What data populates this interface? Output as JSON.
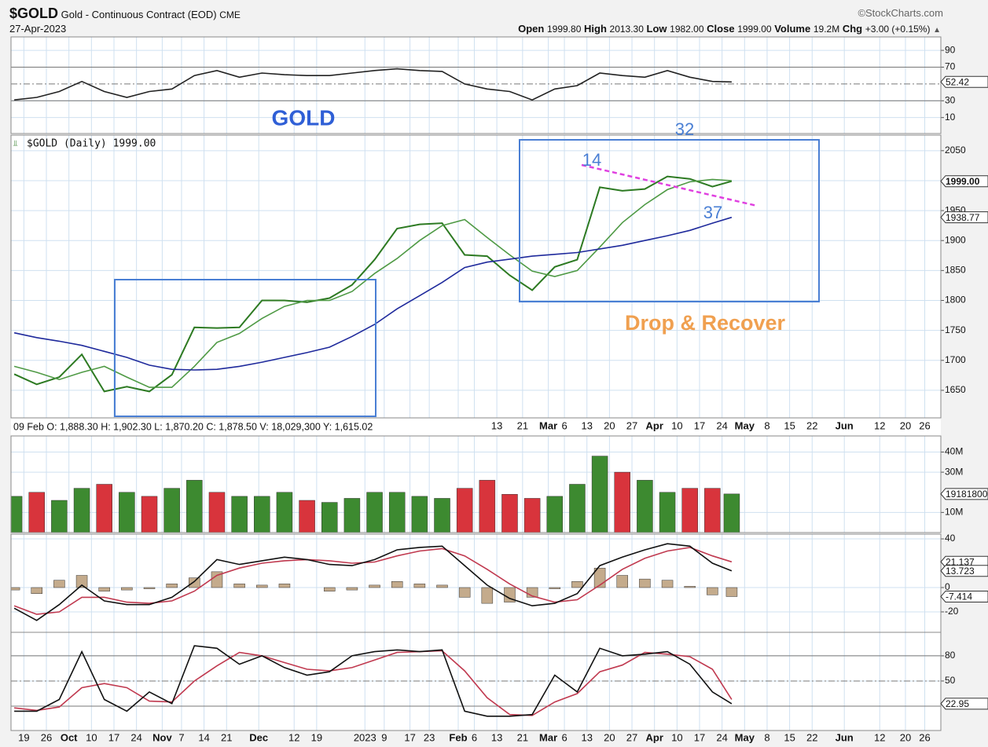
{
  "header": {
    "symbol": "$GOLD",
    "name": "Gold - Continuous Contract (EOD)",
    "exchange": "CME",
    "date": "27-Apr-2023",
    "source": "©StockCharts.com",
    "stats": [
      {
        "label": "Open",
        "value": "1999.80"
      },
      {
        "label": "High",
        "value": "2013.30"
      },
      {
        "label": "Low",
        "value": "1982.00"
      },
      {
        "label": "Close",
        "value": "1999.00"
      },
      {
        "label": "Volume",
        "value": "19.2M"
      },
      {
        "label": "Chg",
        "value": "+3.00 (+0.15%)"
      }
    ]
  },
  "chart_data": {
    "type": "stock",
    "info": "09 Feb O: 1,888.30 H: 1,902.30 L: 1,870.20 C: 1,878.50 V: 18,029,300 Y: 1,615.02",
    "annotations": [
      {
        "text": "GOLD"
      },
      {
        "text": "32"
      },
      {
        "text": "14"
      },
      {
        "text": "37"
      },
      {
        "text": "Drop & Recover"
      }
    ],
    "x": [
      "2022-09-16",
      "2022-09-23",
      "2022-09-30",
      "2022-10-07",
      "2022-10-14",
      "2022-10-21",
      "2022-10-28",
      "2022-11-04",
      "2022-11-11",
      "2022-11-18",
      "2022-11-25",
      "2022-12-02",
      "2022-12-09",
      "2022-12-16",
      "2022-12-23",
      "2022-12-30",
      "2023-01-06",
      "2023-01-13",
      "2023-01-20",
      "2023-01-27",
      "2023-02-03",
      "2023-02-10",
      "2023-02-17",
      "2023-02-24",
      "2023-03-03",
      "2023-03-10",
      "2023-03-17",
      "2023-03-24",
      "2023-03-31",
      "2023-04-07",
      "2023-04-14",
      "2023-04-21",
      "2023-04-27"
    ],
    "xlim": [
      "2022-09-15",
      "2023-07-01"
    ],
    "xticks": [
      {
        "value": "2022-09-19",
        "label": "19"
      },
      {
        "value": "2022-09-26",
        "label": "26"
      },
      {
        "value": "2022-10-03",
        "label": "Oct"
      },
      {
        "value": "2022-10-10",
        "label": "10"
      },
      {
        "value": "2022-10-17",
        "label": "17"
      },
      {
        "value": "2022-10-24",
        "label": "24"
      },
      {
        "value": "2022-11-01",
        "label": "Nov"
      },
      {
        "value": "2022-11-07",
        "label": "7"
      },
      {
        "value": "2022-11-14",
        "label": "14"
      },
      {
        "value": "2022-11-21",
        "label": "21"
      },
      {
        "value": "2022-12-01",
        "label": "Dec"
      },
      {
        "value": "2022-12-12",
        "label": "12"
      },
      {
        "value": "2022-12-19",
        "label": "19"
      },
      {
        "value": "2023-01-03",
        "label": "2023"
      },
      {
        "value": "2023-01-09",
        "label": "9"
      },
      {
        "value": "2023-01-17",
        "label": "17"
      },
      {
        "value": "2023-01-23",
        "label": "23"
      },
      {
        "value": "2023-02-01",
        "label": "Feb"
      },
      {
        "value": "2023-02-06",
        "label": "6"
      },
      {
        "value": "2023-02-13",
        "label": "13"
      },
      {
        "value": "2023-02-21",
        "label": "21"
      },
      {
        "value": "2023-03-01",
        "label": "Mar"
      },
      {
        "value": "2023-03-06",
        "label": "6"
      },
      {
        "value": "2023-03-13",
        "label": "13"
      },
      {
        "value": "2023-03-20",
        "label": "20"
      },
      {
        "value": "2023-03-27",
        "label": "27"
      },
      {
        "value": "2023-04-03",
        "label": "Apr"
      },
      {
        "value": "2023-04-10",
        "label": "10"
      },
      {
        "value": "2023-04-17",
        "label": "17"
      },
      {
        "value": "2023-04-24",
        "label": "24"
      },
      {
        "value": "2023-05-01",
        "label": "May"
      },
      {
        "value": "2023-05-08",
        "label": "8"
      },
      {
        "value": "2023-05-15",
        "label": "15"
      },
      {
        "value": "2023-05-22",
        "label": "22"
      },
      {
        "value": "2023-06-01",
        "label": "Jun"
      },
      {
        "value": "2023-06-12",
        "label": "12"
      },
      {
        "value": "2023-06-20",
        "label": "20"
      },
      {
        "value": "2023-06-26",
        "label": "26"
      }
    ],
    "panels": [
      {
        "ylim": [
          -9,
          106
        ],
        "yticks": [
          90,
          70,
          30,
          10
        ],
        "levels": [
          70,
          30
        ],
        "midline": 50,
        "series": [
          {
            "type": "line",
            "color": "#222222",
            "values": [
              31,
              34,
              41,
              53,
              41,
              34,
              41,
              44,
              60,
              66,
              58,
              63,
              61,
              60,
              60,
              63,
              66,
              68,
              66,
              65,
              50,
              44,
              41,
              31,
              44,
              48,
              63,
              60,
              58,
              66,
              58,
              53,
              52.42
            ]
          }
        ],
        "value_tags": [
          {
            "value": 52.42,
            "label": "52.42"
          }
        ]
      },
      {
        "ylim": [
          1604,
          2076
        ],
        "yticks": [
          1650,
          1700,
          1750,
          1800,
          1850,
          1900,
          1950,
          2000,
          2050
        ],
        "series": [
          {
            "name": "$GOLD (Daily) 1999.00",
            "type": "line",
            "color": "#2d7a22",
            "values": [
              1677,
              1660,
              1672,
              1710,
              1648,
              1656,
              1648,
              1676,
              1755,
              1754,
              1755,
              1800,
              1800,
              1797,
              1804,
              1826,
              1868,
              1920,
              1927,
              1929,
              1876,
              1874,
              1842,
              1817,
              1856,
              1868,
              1989,
              1983,
              1986,
              2007,
              2003,
              1990,
              1999
            ]
          },
          {
            "type": "line",
            "color": "#4f9a45",
            "values": [
              1690,
              1680,
              1668,
              1680,
              1690,
              1672,
              1655,
              1655,
              1690,
              1730,
              1745,
              1770,
              1790,
              1800,
              1800,
              1815,
              1845,
              1870,
              1900,
              1925,
              1935,
              1905,
              1876,
              1849,
              1840,
              1850,
              1889,
              1930,
              1960,
              1985,
              1998,
              2002,
              2000
            ]
          },
          {
            "type": "line",
            "color": "#1f2a9c",
            "values": [
              1746,
              1738,
              1732,
              1725,
              1715,
              1705,
              1692,
              1685,
              1684,
              1685,
              1690,
              1697,
              1705,
              1713,
              1722,
              1740,
              1760,
              1786,
              1808,
              1830,
              1855,
              1864,
              1869,
              1874,
              1877,
              1880,
              1886,
              1892,
              1900,
              1908,
              1917,
              1929,
              1938.77
            ]
          }
        ],
        "value_tags": [
          {
            "value": 1999.0,
            "label": "1999.00"
          },
          {
            "value": 1938.77,
            "label": "1938.77"
          }
        ]
      },
      {
        "ylim": [
          0,
          48000000
        ],
        "yticks": [
          {
            "value": 10000000,
            "label": "10M"
          },
          {
            "value": 30000000,
            "label": "30M"
          },
          {
            "value": 40000000,
            "label": "40M"
          }
        ],
        "series": [
          {
            "type": "bar",
            "color": "#3d8a30",
            "down_color": "#d8343c",
            "values": [
              18000000,
              20000000,
              16000000,
              22000000,
              24000000,
              20000000,
              18000000,
              22000000,
              26000000,
              20000000,
              18000000,
              18000000,
              20000000,
              16000000,
              15000000,
              17000000,
              20000000,
              20000000,
              18000000,
              17000000,
              22000000,
              26000000,
              19000000,
              17000000,
              18000000,
              24000000,
              38000000,
              30000000,
              26000000,
              20000000,
              22000000,
              22000000,
              19181800
            ]
          }
        ],
        "value_tags": [
          {
            "value": 19181800,
            "label": "19181800"
          }
        ]
      },
      {
        "ylim": [
          -36.8,
          43.9
        ],
        "yticks": [
          40,
          0,
          -20
        ],
        "series": [
          {
            "type": "histogram",
            "color": "#c4ab8c",
            "values": [
              -2,
              -5,
              6,
              10,
              -3,
              -2,
              -1,
              3,
              8,
              13,
              3,
              2,
              3,
              0,
              -3,
              -2,
              2,
              5,
              3,
              2,
              -8,
              -13,
              -12,
              -8,
              -1,
              5,
              16,
              10,
              7,
              6,
              1,
              -6,
              -7.414
            ]
          },
          {
            "type": "line",
            "color": "#c0394f",
            "values": [
              -15,
              -22,
              -20,
              -8,
              -8,
              -12,
              -13,
              -11,
              -3,
              10,
              16,
              20,
              22,
              23,
              22,
              20,
              21,
              26,
              30,
              32,
              26,
              15,
              3,
              -7,
              -12,
              -10,
              2,
              15,
              24,
              30,
              33,
              26,
              21.137
            ]
          },
          {
            "type": "line",
            "color": "#111111",
            "values": [
              -17,
              -27,
              -14,
              2,
              -11,
              -14,
              -14,
              -8,
              5,
              23,
              19,
              22,
              25,
              23,
              19,
              18,
              23,
              31,
              33,
              34,
              18,
              2,
              -9,
              -15,
              -13,
              -5,
              18,
              25,
              31,
              36,
              34,
              20,
              13.723
            ]
          }
        ],
        "value_tags": [
          {
            "value": 21.137,
            "label": "21.137"
          },
          {
            "value": 13.723,
            "label": "13.723"
          },
          {
            "value": -7.414,
            "label": "-7.414"
          }
        ]
      },
      {
        "ylim": [
          -9,
          108
        ],
        "yticks": [
          80,
          50
        ],
        "levels": [
          80,
          20
        ],
        "midline": 50,
        "series": [
          {
            "type": "line",
            "color": "#c0394f",
            "values": [
              18,
              15,
              19,
              42,
              47,
              42,
              26,
              25,
              50,
              68,
              84,
              80,
              72,
              64,
              62,
              66,
              75,
              84,
              85,
              86,
              62,
              30,
              10,
              9,
              25,
              35,
              61,
              69,
              84,
              82,
              79,
              64,
              28
            ]
          },
          {
            "type": "line",
            "color": "#111111",
            "values": [
              14,
              14,
              28,
              85,
              28,
              14,
              37,
              23,
              92,
              89,
              70,
              80,
              66,
              57,
              61,
              80,
              85,
              87,
              85,
              87,
              14,
              8,
              8,
              10,
              57,
              37,
              89,
              80,
              82,
              85,
              70,
              37,
              22.95
            ]
          }
        ],
        "value_tags": [
          {
            "value": 22.95,
            "label": "22.95"
          }
        ]
      }
    ]
  }
}
